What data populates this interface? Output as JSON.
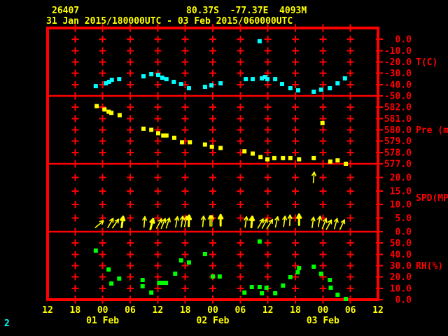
{
  "header": {
    "station_id": "26407",
    "location": "80.37S  -77.37E  4093M",
    "period": "31 Jan 2015/180000UTC - 03 Feb 2015/060000UTC"
  },
  "page_number": "2",
  "colors": {
    "background": "#000000",
    "grid_red": "#ff0000",
    "text_yellow": "#ffff00",
    "temperature_cyan": "#00ffff",
    "humidity_green": "#00ff00"
  },
  "chart_data": {
    "type": "scatter",
    "grid_color": "#ff0000",
    "text_color": "#ffff00",
    "x_axis": {
      "unit": "hours since 31 Jan 2015 12UTC",
      "tick_hours": [
        0,
        6,
        12,
        18,
        24,
        30,
        36,
        42,
        48,
        54,
        60,
        66,
        72
      ],
      "tick_labels": [
        "12",
        "18",
        "00",
        "06",
        "12",
        "18",
        "00",
        "06",
        "12",
        "18",
        "00",
        "06",
        "12"
      ],
      "date_labels": [
        {
          "label": "01 Feb",
          "hour": 12
        },
        {
          "label": "02 Feb",
          "hour": 36
        },
        {
          "label": "03 Feb",
          "hour": 60
        }
      ]
    },
    "panels": [
      {
        "id": "temperature",
        "axis_label": "T(C)",
        "label_at": -20,
        "color": "#00ffff",
        "marker": "square",
        "ymin": -50,
        "ymax": 10,
        "ticks": [
          {
            "label": "0.0",
            "value": 0
          },
          {
            "label": "-10.0",
            "value": -10
          },
          {
            "label": "-20.0",
            "value": -20
          },
          {
            "label": "-30.0",
            "value": -30
          },
          {
            "label": "-40.0",
            "value": -40
          },
          {
            "label": "-50.0",
            "value": -50
          }
        ],
        "points": [
          [
            10.5,
            -41.4
          ],
          [
            12.7,
            -38.9
          ],
          [
            13.4,
            -37.6
          ],
          [
            14.0,
            -35.8
          ],
          [
            15.6,
            -35.2
          ],
          [
            20.9,
            -32.7
          ],
          [
            22.6,
            -30.8
          ],
          [
            24.1,
            -31.5
          ],
          [
            25.0,
            -33.9
          ],
          [
            25.9,
            -35.2
          ],
          [
            27.5,
            -37.6
          ],
          [
            29.1,
            -39.5
          ],
          [
            30.8,
            -43.2
          ],
          [
            34.3,
            -42.0
          ],
          [
            35.7,
            -40.7
          ],
          [
            37.7,
            -38.9
          ],
          [
            43.2,
            -35.2
          ],
          [
            44.7,
            -35.2
          ],
          [
            46.2,
            -1.7
          ],
          [
            46.7,
            -34.5
          ],
          [
            47.4,
            -33.3
          ],
          [
            47.9,
            -35.2
          ],
          [
            49.6,
            -35.2
          ],
          [
            51.1,
            -39.5
          ],
          [
            52.9,
            -43.2
          ],
          [
            54.6,
            -45.1
          ],
          [
            58.0,
            -46.3
          ],
          [
            59.6,
            -44.5
          ],
          [
            61.5,
            -43.2
          ],
          [
            63.2,
            -38.9
          ],
          [
            64.8,
            -34.5
          ]
        ]
      },
      {
        "id": "pressure",
        "axis_label": "Pre (mb)",
        "label_at": 580,
        "color": "#ffff00",
        "marker": "square",
        "ymin": 577,
        "ymax": 583,
        "ticks": [
          {
            "label": "582.0",
            "value": 582
          },
          {
            "label": "581.0",
            "value": 581
          },
          {
            "label": "580.0",
            "value": 580
          },
          {
            "label": "579.0",
            "value": 579
          },
          {
            "label": "578.0",
            "value": 578
          },
          {
            "label": "577.0",
            "value": 577
          }
        ],
        "points": [
          [
            10.7,
            582.1
          ],
          [
            12.4,
            581.8
          ],
          [
            13.3,
            581.6
          ],
          [
            13.9,
            581.5
          ],
          [
            15.7,
            581.3
          ],
          [
            20.9,
            580.1
          ],
          [
            22.6,
            580.0
          ],
          [
            24.1,
            579.7
          ],
          [
            25.2,
            579.5
          ],
          [
            25.9,
            579.5
          ],
          [
            27.6,
            579.3
          ],
          [
            29.3,
            578.9
          ],
          [
            31.0,
            578.9
          ],
          [
            34.3,
            578.7
          ],
          [
            35.8,
            578.5
          ],
          [
            37.7,
            578.4
          ],
          [
            42.9,
            578.1
          ],
          [
            44.7,
            577.9
          ],
          [
            46.4,
            577.6
          ],
          [
            47.9,
            577.4
          ],
          [
            49.4,
            577.5
          ],
          [
            51.3,
            577.5
          ],
          [
            52.9,
            577.5
          ],
          [
            54.8,
            577.4
          ],
          [
            58.0,
            577.5
          ],
          [
            59.9,
            580.6
          ],
          [
            61.6,
            577.2
          ],
          [
            63.2,
            577.3
          ],
          [
            65.0,
            577.0
          ]
        ]
      },
      {
        "id": "wind-speed",
        "axis_label": "SPD(MPS)",
        "label_at": 12.5,
        "color": "#ffff00",
        "marker": "arrow",
        "ymin": 0,
        "ymax": 25,
        "ticks": [
          {
            "label": "20.0",
            "value": 20
          },
          {
            "label": "15.0",
            "value": 15
          },
          {
            "label": "10.0",
            "value": 10
          },
          {
            "label": "5.0",
            "value": 5
          },
          {
            "label": "0.0",
            "value": 0
          }
        ],
        "arrows": [
          [
            11.3,
            2.8,
            50,
            1
          ],
          [
            13.7,
            3.2,
            30,
            1
          ],
          [
            14.8,
            3.0,
            35,
            1
          ],
          [
            16.3,
            3.6,
            8,
            2
          ],
          [
            21.1,
            3.6,
            5,
            1
          ],
          [
            22.7,
            2.8,
            15,
            2
          ],
          [
            24.3,
            3.0,
            28,
            1
          ],
          [
            25.2,
            3.0,
            22,
            1
          ],
          [
            26.2,
            3.2,
            18,
            1
          ],
          [
            28.1,
            3.6,
            10,
            1
          ],
          [
            29.3,
            3.8,
            8,
            1
          ],
          [
            30.1,
            3.8,
            12,
            1
          ],
          [
            30.8,
            4.0,
            2,
            2
          ],
          [
            33.9,
            3.8,
            5,
            1
          ],
          [
            35.4,
            4.0,
            0,
            1
          ],
          [
            35.8,
            4.0,
            0,
            1
          ],
          [
            37.7,
            4.2,
            0,
            2
          ],
          [
            43.2,
            3.6,
            8,
            1
          ],
          [
            44.5,
            3.6,
            5,
            2
          ],
          [
            46.4,
            3.0,
            30,
            1
          ],
          [
            47.3,
            3.0,
            28,
            1
          ],
          [
            48.4,
            2.8,
            32,
            1
          ],
          [
            49.9,
            3.6,
            12,
            1
          ],
          [
            51.6,
            3.8,
            8,
            1
          ],
          [
            52.8,
            4.2,
            2,
            1
          ],
          [
            54.8,
            4.4,
            0,
            2
          ],
          [
            57.8,
            3.4,
            8,
            1
          ],
          [
            58.0,
            20.0,
            5,
            1
          ],
          [
            59.2,
            3.8,
            10,
            1
          ],
          [
            60.3,
            3.0,
            22,
            1
          ],
          [
            61.3,
            2.6,
            28,
            1
          ],
          [
            62.8,
            3.0,
            15,
            1
          ],
          [
            64.2,
            2.6,
            25,
            1
          ]
        ]
      },
      {
        "id": "relative-humidity",
        "axis_label": "RH(%)",
        "label_at": 30,
        "color": "#00ff00",
        "marker": "square",
        "ymin": 0,
        "ymax": 60,
        "ticks": [
          {
            "label": "50.0",
            "value": 50
          },
          {
            "label": "40.0",
            "value": 40
          },
          {
            "label": "30.0",
            "value": 30
          },
          {
            "label": "20.0",
            "value": 20
          },
          {
            "label": "10.0",
            "value": 10
          },
          {
            "label": "0.0",
            "value": 0
          }
        ],
        "points": [
          [
            10.5,
            43.3
          ],
          [
            13.3,
            26.6
          ],
          [
            13.9,
            14.2
          ],
          [
            15.6,
            18.6
          ],
          [
            20.7,
            17.3
          ],
          [
            20.7,
            11.8
          ],
          [
            22.6,
            6.2
          ],
          [
            24.3,
            14.8
          ],
          [
            25.0,
            14.8
          ],
          [
            25.8,
            14.8
          ],
          [
            27.8,
            22.9
          ],
          [
            29.1,
            34.6
          ],
          [
            30.8,
            32.8
          ],
          [
            34.3,
            40.2
          ],
          [
            36.0,
            20.4
          ],
          [
            37.5,
            20.4
          ],
          [
            42.9,
            6.2
          ],
          [
            44.5,
            11.1
          ],
          [
            46.2,
            51.3
          ],
          [
            46.2,
            11.1
          ],
          [
            46.7,
            5.6
          ],
          [
            47.7,
            10.5
          ],
          [
            49.6,
            5.6
          ],
          [
            51.3,
            12.4
          ],
          [
            52.9,
            19.8
          ],
          [
            54.5,
            24.1
          ],
          [
            54.8,
            27.8
          ],
          [
            58.0,
            29.1
          ],
          [
            59.6,
            22.9
          ],
          [
            61.5,
            17.3
          ],
          [
            61.7,
            10.5
          ],
          [
            63.2,
            4.3
          ],
          [
            65.0,
            0.6
          ]
        ]
      }
    ]
  }
}
